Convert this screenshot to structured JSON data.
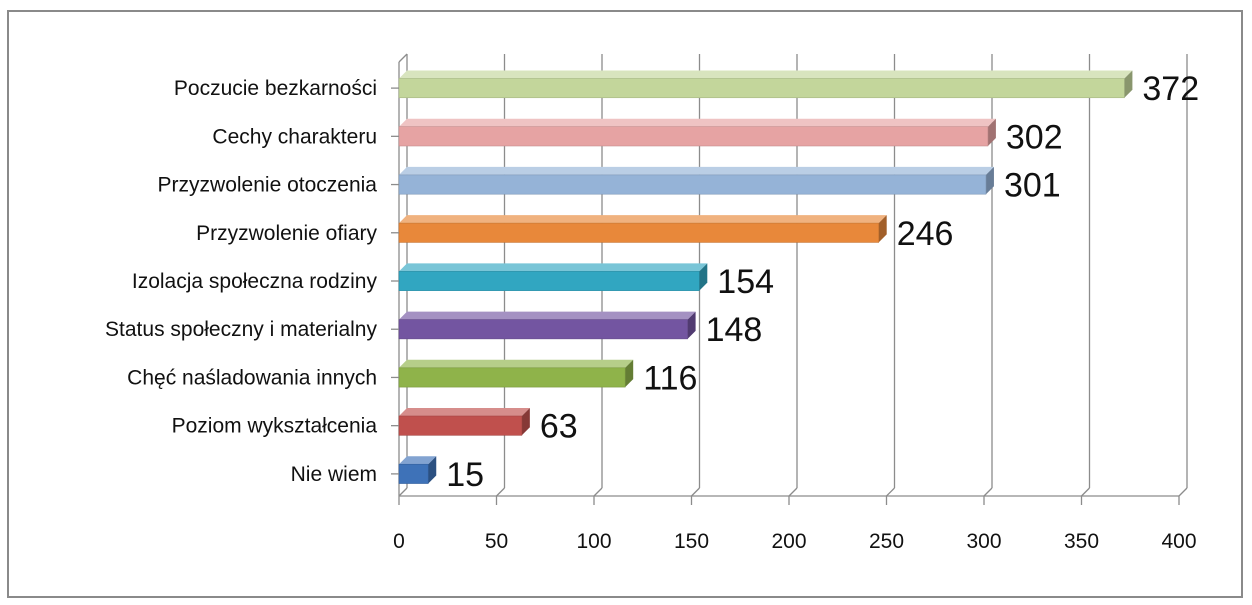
{
  "chart_data": {
    "type": "bar",
    "orientation": "horizontal",
    "categories": [
      "Poczucie bezkarności",
      "Cechy charakteru",
      "Przyzwolenie otoczenia",
      "Przyzwolenie ofiary",
      "Izolacja społeczna rodziny",
      "Status społeczny i materialny",
      "Chęć naśladowania innych",
      "Poziom wykształcenia",
      "Nie wiem"
    ],
    "values": [
      372,
      302,
      301,
      246,
      154,
      148,
      116,
      63,
      15
    ],
    "colors": [
      "#c3d69b",
      "#e6a3a3",
      "#95b3d7",
      "#e8883a",
      "#31a6c1",
      "#7355a1",
      "#8fb34a",
      "#c0504d",
      "#3e72b8"
    ],
    "xlim": [
      0,
      400
    ],
    "xticks": [
      "0",
      "50",
      "100",
      "150",
      "200",
      "250",
      "300",
      "350",
      "400"
    ],
    "grid": true,
    "title": "",
    "xlabel": "",
    "ylabel": ""
  }
}
